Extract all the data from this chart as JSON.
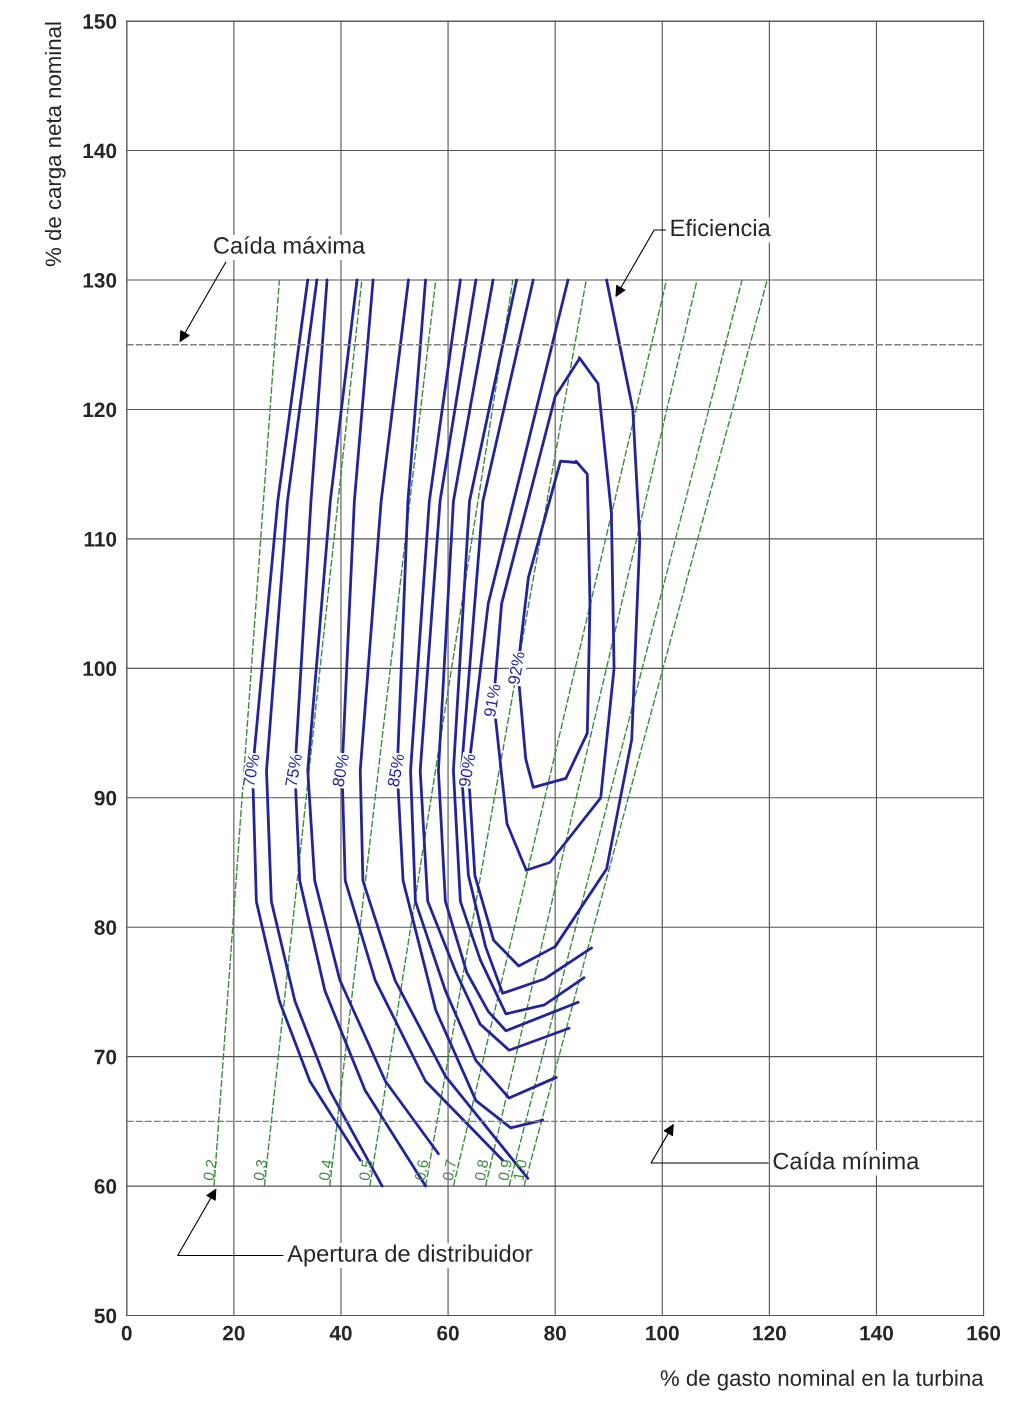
{
  "chart_data": {
    "type": "line",
    "xlabel": "% de gasto nominal en la turbina",
    "ylabel": "% de carga neta nominal",
    "xlim": [
      0,
      160
    ],
    "ylim": [
      50,
      150
    ],
    "xticks": [
      0,
      20,
      40,
      60,
      80,
      100,
      120,
      140,
      160
    ],
    "yticks": [
      50,
      60,
      70,
      80,
      90,
      100,
      110,
      120,
      130,
      140,
      150
    ],
    "grid": true,
    "marker": "none",
    "series": [
      {
        "name": "0.2",
        "color": "#3d8b3d",
        "line_style": "dashed",
        "x": [
          16.3,
          28.5
        ],
        "values": [
          60,
          130
        ]
      },
      {
        "name": "0.3",
        "color": "#3d8b3d",
        "line_style": "dashed",
        "x": [
          25.7,
          43.9
        ],
        "values": [
          60,
          130
        ]
      },
      {
        "name": "0.4",
        "color": "#3d8b3d",
        "line_style": "dashed",
        "x": [
          37.9,
          57.7
        ],
        "values": [
          60,
          130
        ]
      },
      {
        "name": "0.5",
        "color": "#3d8b3d",
        "line_style": "dashed",
        "x": [
          45.4,
          72.1
        ],
        "values": [
          60,
          130
        ]
      },
      {
        "name": "0.6",
        "color": "#3d8b3d",
        "line_style": "dashed",
        "x": [
          55.8,
          85.8
        ],
        "values": [
          60,
          130
        ]
      },
      {
        "name": "0.7",
        "color": "#3d8b3d",
        "line_style": "dashed",
        "x": [
          61.0,
          100.8
        ],
        "values": [
          60,
          130
        ]
      },
      {
        "name": "0.8",
        "color": "#3d8b3d",
        "line_style": "dashed",
        "x": [
          67.0,
          106.5
        ],
        "values": [
          60,
          130
        ]
      },
      {
        "name": "0.9",
        "color": "#3d8b3d",
        "line_style": "dashed",
        "x": [
          71.4,
          114.9
        ],
        "values": [
          60,
          130
        ]
      },
      {
        "name": "1.0",
        "color": "#3d8b3d",
        "line_style": "dashed",
        "x": [
          74.2,
          119.6
        ],
        "values": [
          60,
          130
        ]
      },
      {
        "name": "70%",
        "color": "#24249a",
        "line_style": "solid",
        "x": [
          33.8,
          28.2,
          23.5,
          24.2,
          28.5,
          34.2,
          43.6
        ],
        "values": [
          130,
          112.9,
          92.1,
          82.0,
          74.3,
          68.1,
          62.0
        ]
      },
      {
        "color": "#24249a",
        "line_style": "solid",
        "x": [
          35.5,
          30.0,
          26.1,
          27.0,
          31.4,
          37.9,
          47.7
        ],
        "values": [
          130,
          112.9,
          92.1,
          82.0,
          74.3,
          67.4,
          60.0
        ]
      },
      {
        "name": "75%",
        "color": "#24249a",
        "line_style": "solid",
        "x": [
          37.4,
          34.4,
          31.4,
          32.3,
          37.0,
          44.5,
          55.8
        ],
        "values": [
          130,
          112.9,
          92.1,
          83.6,
          75.1,
          67.4,
          60.0
        ]
      },
      {
        "color": "#24249a",
        "line_style": "solid",
        "x": [
          43.0,
          38.0,
          33.8,
          35.1,
          39.8,
          48.3,
          58.2
        ],
        "values": [
          130,
          112.9,
          92.1,
          83.6,
          75.9,
          68.1,
          62.5
        ]
      },
      {
        "name": "80%",
        "color": "#24249a",
        "line_style": "solid",
        "x": [
          46.0,
          42.5,
          40.2,
          40.8,
          46.4,
          55.8,
          70.2
        ],
        "values": [
          130,
          112.9,
          92.1,
          83.6,
          75.9,
          68.1,
          62.0
        ]
      },
      {
        "color": "#24249a",
        "line_style": "solid",
        "x": [
          52.6,
          47.5,
          43.6,
          44.1,
          50.1,
          59.5,
          74.9
        ],
        "values": [
          130,
          112.9,
          92.1,
          83.6,
          75.9,
          68.5,
          60.6
        ]
      },
      {
        "name": "85%",
        "color": "#24249a",
        "line_style": "solid",
        "x": [
          55.8,
          52.5,
          50.5,
          51.6,
          57.7,
          65.2,
          71.7,
          77.7
        ],
        "values": [
          130,
          112.9,
          92.1,
          83.6,
          73.6,
          66.6,
          64.5,
          65.1
        ]
      },
      {
        "color": "#24249a",
        "line_style": "solid",
        "x": [
          62.3,
          56.5,
          53.0,
          53.9,
          59.5,
          65.2,
          71.4,
          80.2
        ],
        "values": [
          130,
          112.9,
          92.1,
          82.0,
          75.1,
          69.7,
          66.8,
          68.4
        ]
      },
      {
        "color": "#24249a",
        "line_style": "solid",
        "x": [
          65.2,
          58.5,
          54.8,
          56.2,
          61.4,
          66.0,
          71.4,
          82.6
        ],
        "values": [
          130,
          112.9,
          92.1,
          82.0,
          76.6,
          72.5,
          70.5,
          72.2
        ]
      },
      {
        "color": "#24249a",
        "line_style": "solid",
        "x": [
          68.4,
          61.0,
          58.2,
          59.5,
          63.5,
          67.5,
          70.8,
          84.3
        ],
        "values": [
          130,
          112.9,
          92.1,
          82.0,
          76.5,
          73.5,
          72.0,
          74.2
        ]
      },
      {
        "color": "#24249a",
        "line_style": "solid",
        "x": [
          72.8,
          64.0,
          61.0,
          62.3,
          66.0,
          70.8,
          78.0,
          85.4
        ],
        "values": [
          130,
          112.9,
          92.1,
          82.0,
          77.5,
          73.3,
          74.0,
          76.1
        ]
      },
      {
        "color": "#24249a",
        "line_style": "solid",
        "x": [
          75.9,
          66.5,
          62.5,
          63.8,
          67.0,
          70.2,
          78.0,
          86.8
        ],
        "values": [
          130,
          112.9,
          92.1,
          84.0,
          78.5,
          74.9,
          76.0,
          78.4
        ]
      },
      {
        "name": "90%",
        "color": "#24249a",
        "line_style": "solid",
        "x": [
          82.4,
          73.5,
          67.5,
          63.8,
          65.0,
          68.5,
          73.2,
          80.0,
          89.6,
          94.3,
          95.8,
          94.5,
          89.6
        ],
        "values": [
          130,
          115,
          105,
          92.1,
          84,
          79,
          77.0,
          78.5,
          84.5,
          94.5,
          110,
          120,
          130
        ]
      },
      {
        "name": "91%",
        "color": "#24249a",
        "line_style": "solid",
        "x": [
          84.5,
          88,
          90.5,
          91,
          88.5,
          79,
          74.6,
          71,
          68.5,
          70,
          75,
          80,
          84.5
        ],
        "values": [
          124,
          122,
          112,
          100,
          90,
          85,
          84.4,
          88,
          97.5,
          105,
          113,
          121,
          123.9
        ]
      },
      {
        "name": "92%",
        "color": "#24249a",
        "line_style": "solid",
        "x": [
          83.9,
          86,
          86.5,
          86,
          82,
          75.9,
          74.5,
          73,
          75,
          79,
          81,
          83.9
        ],
        "values": [
          116,
          115,
          105,
          95,
          91.5,
          90.8,
          93,
          100,
          107,
          113,
          116,
          115.9
        ]
      }
    ],
    "ref_lines": [
      {
        "axis": "y",
        "value": 125,
        "label": "Caída máxima",
        "color": "#808080",
        "line_style": "dashed"
      },
      {
        "axis": "y",
        "value": 65,
        "label": "Caída mínima",
        "color": "#808080",
        "line_style": "dashed"
      }
    ],
    "annotations": [
      {
        "text": "Eficiencia",
        "x": 91,
        "y": 128.5
      },
      {
        "text": "Apertura de distribuidor",
        "x": 17,
        "y": 60
      }
    ]
  }
}
